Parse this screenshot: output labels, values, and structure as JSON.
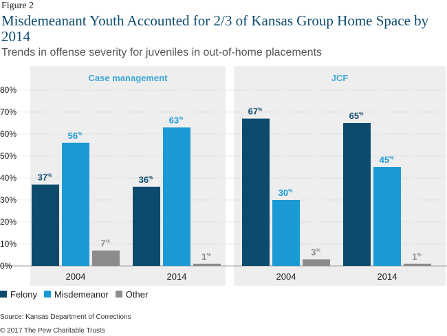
{
  "figure_label": "Figure 2",
  "title": "Misdemeanant Youth Accounted for 2/3 of Kansas Group Home Space by 2014",
  "subtitle": "Trends in offense severity for juveniles in out-of-home placements",
  "source": "Source: Kansas Department of Corrections",
  "copyright": "© 2017 The Pew Charitable Trusts",
  "colors": {
    "felony": "#0d4b6e",
    "misdemeanor": "#1b9ad6",
    "other": "#8c8c8c",
    "panel_bg": "#eeeeee",
    "panel_title": "#3ea7d6"
  },
  "legend": [
    {
      "name": "Felony",
      "color": "#0d4b6e"
    },
    {
      "name": "Misdemeanor",
      "color": "#1b9ad6"
    },
    {
      "name": "Other",
      "color": "#8c8c8c"
    }
  ],
  "chart_data": {
    "type": "bar",
    "title": "Misdemeanant Youth Accounted for 2/3 of Kansas Group Home Space by 2014",
    "subtitle": "Trends in offense severity for juveniles in out-of-home placements",
    "y_ticks": [
      "0%",
      "10%",
      "20%",
      "30%",
      "40%",
      "50%",
      "60%",
      "70%",
      "80%"
    ],
    "ylim": [
      0,
      80
    ],
    "grid": true,
    "legend_position": "bottom-left",
    "label_suffix": "%",
    "series_names": [
      "Felony",
      "Misdemeanor",
      "Other"
    ],
    "panels": [
      {
        "title": "Case management",
        "categories": [
          "2004",
          "2014"
        ],
        "series": [
          {
            "name": "Felony",
            "values": [
              37,
              36
            ]
          },
          {
            "name": "Misdemeanor",
            "values": [
              56,
              63
            ]
          },
          {
            "name": "Other",
            "values": [
              7,
              1
            ]
          }
        ]
      },
      {
        "title": "JCF",
        "categories": [
          "2004",
          "2014"
        ],
        "series": [
          {
            "name": "Felony",
            "values": [
              67,
              65
            ]
          },
          {
            "name": "Misdemeanor",
            "values": [
              30,
              45
            ]
          },
          {
            "name": "Other",
            "values": [
              3,
              1
            ]
          }
        ]
      }
    ]
  }
}
